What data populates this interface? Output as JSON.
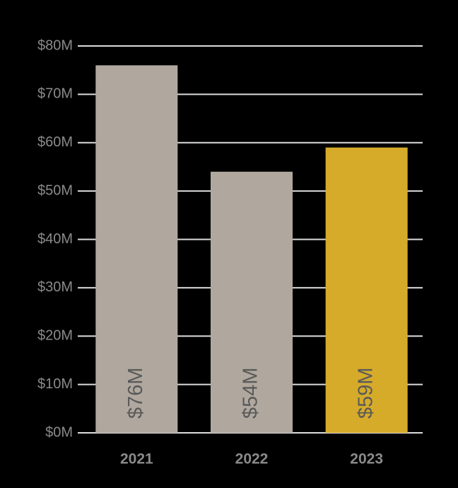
{
  "chart_data": {
    "type": "bar",
    "categories": [
      "2021",
      "2022",
      "2023"
    ],
    "values": [
      76,
      54,
      59
    ],
    "value_labels": [
      "$76M",
      "$54M",
      "$59M"
    ],
    "colors": [
      "#b0a89e",
      "#b0a89e",
      "#d6ab2a"
    ],
    "ylim": [
      0,
      80
    ],
    "yticks": [
      {
        "value": 0,
        "label": "$0M"
      },
      {
        "value": 10,
        "label": "$10M"
      },
      {
        "value": 20,
        "label": "$20M"
      },
      {
        "value": 30,
        "label": "$30M"
      },
      {
        "value": 40,
        "label": "$40M"
      },
      {
        "value": 50,
        "label": "$50M"
      },
      {
        "value": 60,
        "label": "$60M"
      },
      {
        "value": 70,
        "label": "$70M"
      },
      {
        "value": 80,
        "label": "$80M"
      }
    ],
    "grid": true
  }
}
